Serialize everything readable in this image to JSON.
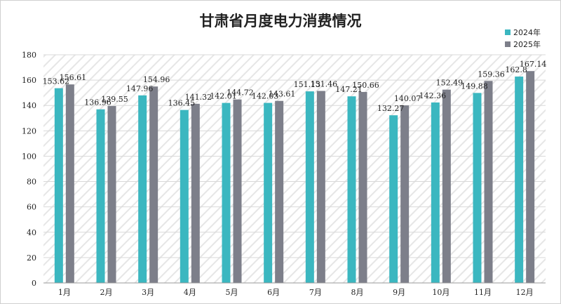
{
  "chart_data": {
    "type": "bar",
    "title": "甘肃省月度电力消费情况",
    "categories": [
      "1月",
      "2月",
      "3月",
      "4月",
      "5月",
      "6月",
      "7月",
      "8月",
      "9月",
      "10月",
      "11月",
      "12月"
    ],
    "series": [
      {
        "name": "2024年",
        "color": "#3bb7c0",
        "values": [
          153.62,
          136.96,
          147.96,
          136.45,
          142.01,
          142.03,
          151.13,
          147.21,
          132.27,
          142.36,
          149.88,
          162.8
        ]
      },
      {
        "name": "2025年",
        "color": "#7d7f8a",
        "values": [
          156.61,
          139.55,
          154.96,
          141.32,
          144.72,
          143.61,
          151.46,
          150.66,
          140.07,
          152.49,
          159.36,
          167.14
        ]
      }
    ],
    "ylim": [
      0,
      180
    ],
    "yticks": [
      0,
      20,
      40,
      60,
      80,
      100,
      120,
      140,
      160,
      180
    ],
    "xlabel": "",
    "ylabel": "",
    "grid": true,
    "legend_position": "top-right"
  }
}
